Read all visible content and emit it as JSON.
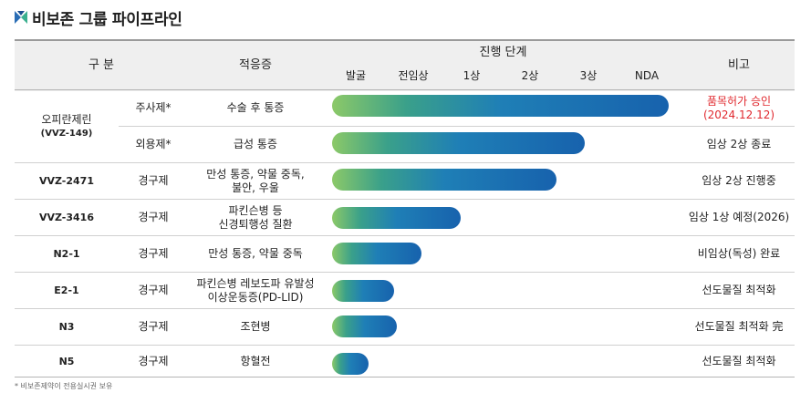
{
  "title": "비보존 그룹 파이프라인",
  "colors": {
    "accent_blue": "#1762ad",
    "accent_green": "#8cc968",
    "note_red": "#e0282e"
  },
  "header": {
    "division": "구  분",
    "indication": "적응증",
    "progress": "진행 단계",
    "note": "비고",
    "stages": [
      "발굴",
      "전임상",
      "1상",
      "2상",
      "3상",
      "NDA"
    ]
  },
  "rows": [
    {
      "drug_name": "오피란제린",
      "drug_code": "(VVZ-149)",
      "formulation": "주사제*",
      "indication": "수술 후 통증",
      "progress_stage": 6.0,
      "note_line1": "품목허가 승인",
      "note_line2": "(2024.12.12)"
    },
    {
      "formulation": "외용제*",
      "indication": "급성 통증",
      "progress_stage": 4.5,
      "note": "임상 2상 종료"
    },
    {
      "drug_name": "VVZ-2471",
      "formulation": "경구제",
      "indication_line1": "만성 통증, 약물 중독,",
      "indication_line2": "불안, 우울",
      "progress_stage": 4.0,
      "note": "임상 2상 진행중"
    },
    {
      "drug_name": "VVZ-3416",
      "formulation": "경구제",
      "indication_line1": "파킨슨병 등",
      "indication_line2": "신경퇴행성 질환",
      "progress_stage": 2.3,
      "note": "임상 1상 예정(2026)"
    },
    {
      "drug_name": "N2-1",
      "formulation": "경구제",
      "indication": "만성 통증, 약물 중독",
      "progress_stage": 1.6,
      "note": "비임상(독성) 완료"
    },
    {
      "drug_name": "E2-1",
      "formulation": "경구제",
      "indication_line1": "파킨슨병 레보도파 유발성",
      "indication_line2": "이상운동증(PD-LID)",
      "progress_stage": 1.1,
      "note": "선도물질 최적화"
    },
    {
      "drug_name": "N3",
      "formulation": "경구제",
      "indication": "조현병",
      "progress_stage": 1.15,
      "note": "선도물질 최적화 完"
    },
    {
      "drug_name": "N5",
      "formulation": "경구제",
      "indication": "항혈전",
      "progress_stage": 0.65,
      "note": "선도물질 최적화"
    }
  ],
  "footnote": "* 비보존제약이 전용실시권 보유"
}
